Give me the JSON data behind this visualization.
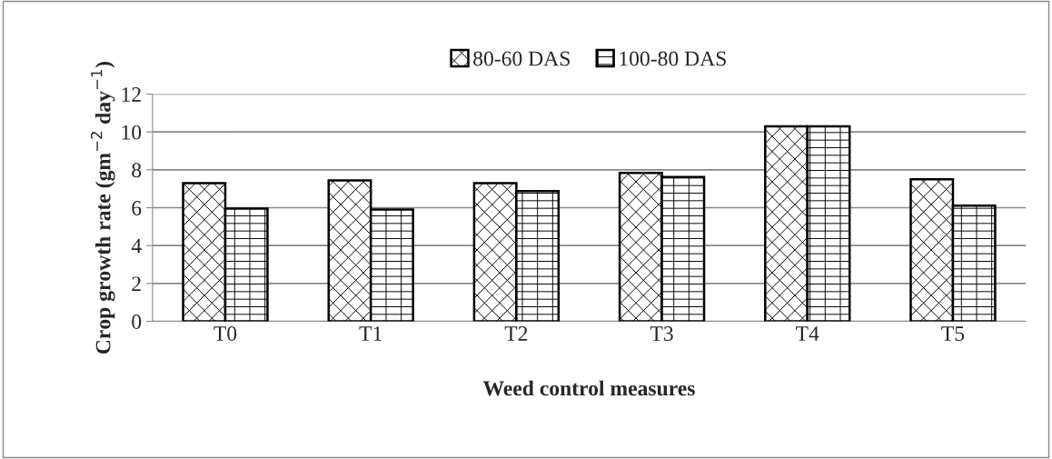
{
  "chart_data": {
    "type": "bar",
    "xlabel": "Weed control measures",
    "ylabel": "Crop growth rate (gm$^{−2}$ day$^{−1}$)",
    "categories": [
      "T0",
      "T1",
      "T2",
      "T3",
      "T4",
      "T5"
    ],
    "series": [
      {
        "name": "80-60 DAS",
        "color": "#000000",
        "values": [
          7.3,
          7.44,
          7.3,
          7.84,
          10.3,
          7.5
        ]
      },
      {
        "name": "100-80 DAS",
        "color": "#000000",
        "values": [
          5.95,
          5.9,
          6.88,
          7.62,
          10.3,
          6.11
        ]
      }
    ],
    "ylim": [
      0,
      12
    ],
    "yticks": [
      0,
      2,
      4,
      6,
      8,
      10,
      12
    ],
    "grid": "y",
    "legend": "top"
  }
}
